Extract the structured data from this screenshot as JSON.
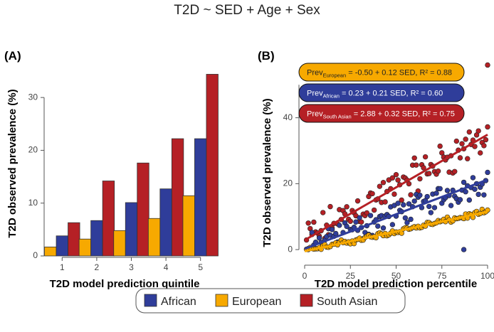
{
  "figure_title": "T2D ~ SED + Age + Sex",
  "colors": {
    "African": "#2f3d9a",
    "European": "#f7a900",
    "South Asian": "#b52025"
  },
  "legend": {
    "items": [
      "African",
      "European",
      "South Asian"
    ]
  },
  "chart_data": [
    {
      "panel": "(A)",
      "type": "bar",
      "title": "",
      "xlabel": "T2D model prediction quintile",
      "ylabel": "T2D observed prevalence (%)",
      "categories": [
        "1",
        "2",
        "3",
        "4",
        "5"
      ],
      "yticks": [
        "0",
        "10",
        "20",
        "30"
      ],
      "ylim": [
        0,
        35
      ],
      "series": [
        {
          "name": "European",
          "values": [
            1.7,
            3.2,
            4.8,
            7.1,
            11.4
          ]
        },
        {
          "name": "African",
          "values": [
            3.8,
            6.7,
            10.1,
            12.7,
            22.2
          ]
        },
        {
          "name": "South Asian",
          "values": [
            6.3,
            14.2,
            17.6,
            22.2,
            34.4
          ]
        }
      ]
    },
    {
      "panel": "(B)",
      "type": "scatter",
      "title": "",
      "xlabel": "T2D model prediction percentile",
      "ylabel": "T2D observed prevalence (%)",
      "xticks": [
        "0",
        "25",
        "50",
        "75",
        "100"
      ],
      "yticks": [
        "0",
        "20",
        "40"
      ],
      "xlim": [
        0,
        100
      ],
      "ylim": [
        -3,
        52
      ],
      "fits": [
        {
          "name": "European",
          "intercept": -0.5,
          "slope": 0.12,
          "prefix": "Prev",
          "subscript": "European",
          "suffix": " = -0.50 + 0.12 SED, R² = 0.88"
        },
        {
          "name": "African",
          "intercept": 0.23,
          "slope": 0.21,
          "prefix": "Prev",
          "subscript": "African",
          "suffix": " = 0.23 + 0.21 SED, R² = 0.60"
        },
        {
          "name": "South Asian",
          "intercept": 2.88,
          "slope": 0.32,
          "prefix": "Prev",
          "subscript": "South Asian",
          "suffix": " = 2.88 + 0.32 SED, R² = 0.75"
        }
      ],
      "noise": {
        "European": 0.7,
        "African": 3.0,
        "South Asian": 4.5
      },
      "outliers": [
        {
          "series": "South Asian",
          "x": 100,
          "y": 56
        },
        {
          "series": "African",
          "x": 87,
          "y": 0
        }
      ]
    }
  ]
}
